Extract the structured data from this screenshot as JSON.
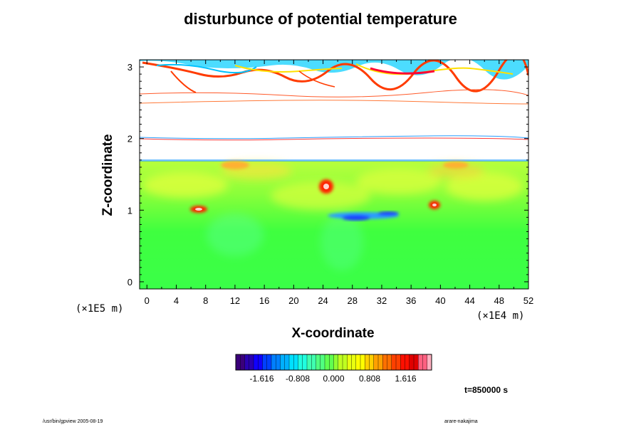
{
  "chart_data": {
    "type": "heatmap",
    "title": "disturbunce of potential temperature",
    "xlabel": "X-coordinate",
    "ylabel": "Z-coordinate",
    "x_unit": "(×1E4 m)",
    "y_unit": "(×1E5 m)",
    "x_ticks": [
      "0",
      "4",
      "8",
      "12",
      "16",
      "20",
      "24",
      "28",
      "32",
      "36",
      "40",
      "44",
      "48",
      "52"
    ],
    "y_ticks": [
      "0",
      "1",
      "2",
      "3"
    ],
    "xlim": [
      -1,
      52
    ],
    "ylim": [
      -0.1,
      3.1
    ],
    "colorbar": {
      "labels": [
        "-1.616",
        "-0.808",
        "0.000",
        "0.808",
        "1.616"
      ],
      "range": [
        -2.2,
        2.2
      ]
    },
    "time": "t=850000 s",
    "features": [
      {
        "x": 7,
        "z": 1.0,
        "value": 1.9
      },
      {
        "x": 24.5,
        "z": 1.33,
        "value": 1.8
      },
      {
        "x": 39,
        "z": 1.06,
        "value": 1.6
      },
      {
        "x": 28,
        "z": 0.93,
        "value": -1.2
      },
      {
        "x": 32,
        "z": 0.95,
        "value": -1.0
      }
    ]
  },
  "footer": {
    "left": "/usr/bin/gpview 2005-08-19",
    "right": "arare-nakajima"
  },
  "colors": {
    "background_field": "#3eff3e",
    "upper_field": "#c8ff3c",
    "warm": "#ff2a00",
    "cold": "#1e6bff"
  }
}
